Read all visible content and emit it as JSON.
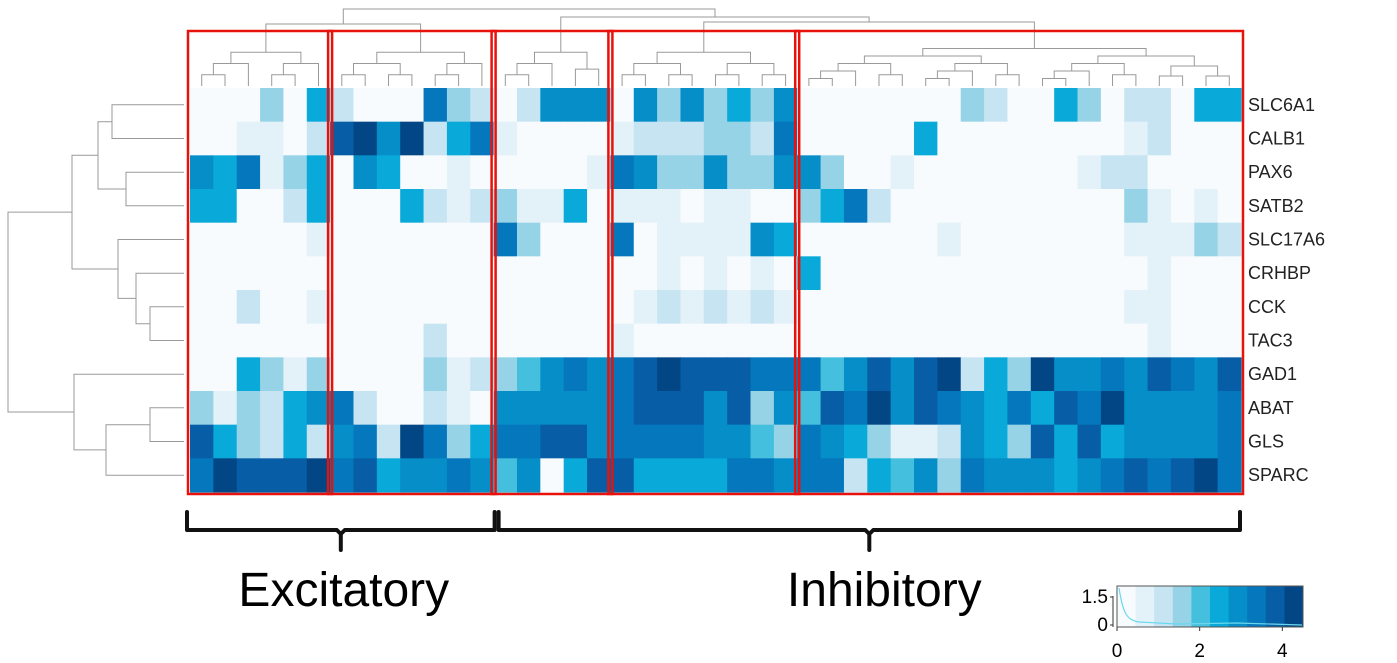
{
  "chart_data": {
    "type": "heatmap",
    "rows": [
      "SLC6A1",
      "CALB1",
      "PAX6",
      "SATB2",
      "SLC17A6",
      "CRHBP",
      "CCK",
      "TAC3",
      "GAD1",
      "ABAT",
      "GLS",
      "SPARC"
    ],
    "n_columns": 45,
    "values": [
      [
        0,
        0,
        0,
        1.5,
        0,
        2.5,
        1,
        0,
        0,
        0,
        3.5,
        1.5,
        1,
        0,
        1,
        3,
        3,
        3,
        0,
        3,
        1.5,
        3,
        1.5,
        2.5,
        1.5,
        3,
        0,
        0,
        0,
        0,
        0,
        0,
        0,
        1.5,
        1,
        0,
        0,
        2.5,
        1.5,
        0,
        1,
        1,
        0,
        2.5,
        2.5
      ],
      [
        0,
        0,
        0.5,
        0.5,
        0,
        1,
        4,
        4.5,
        3,
        4.5,
        1,
        2.5,
        3.5,
        0.5,
        0,
        0,
        0,
        0,
        0.5,
        1,
        1,
        1,
        1.5,
        1.5,
        1,
        3.5,
        0,
        0,
        0,
        0,
        0,
        2.5,
        0,
        0,
        0,
        0,
        0,
        0,
        0,
        0,
        0.5,
        1,
        0,
        0,
        0
      ],
      [
        3,
        2.5,
        3.5,
        0.5,
        1.5,
        2.5,
        0,
        3,
        2.5,
        0,
        0,
        0.5,
        0,
        0,
        0,
        0,
        0,
        0.5,
        3.5,
        3,
        1.5,
        1.5,
        3,
        1.5,
        1.5,
        3,
        3,
        1.5,
        0,
        0,
        0.5,
        0,
        0,
        0,
        0,
        0,
        0,
        0,
        0.5,
        1,
        1,
        0,
        0,
        0,
        0
      ],
      [
        2.5,
        2.5,
        0,
        0,
        1,
        2.5,
        0,
        0,
        0,
        2.5,
        1,
        0.5,
        1,
        1.5,
        0.5,
        0.5,
        2.5,
        0,
        0.5,
        0.5,
        0.5,
        0,
        0.5,
        0.5,
        0,
        0,
        1.5,
        2.5,
        3.5,
        1,
        0,
        0,
        0,
        0,
        0,
        0,
        0,
        0,
        0,
        0,
        1.5,
        0.5,
        0,
        0.5,
        0
      ],
      [
        0,
        0,
        0,
        0,
        0,
        0.5,
        0,
        0,
        0,
        0,
        0,
        0,
        0,
        3.5,
        1.5,
        0,
        0,
        0,
        3.5,
        0,
        0.5,
        0.5,
        0.5,
        0.5,
        3,
        2.5,
        0,
        0,
        0,
        0,
        0,
        0,
        0.5,
        0,
        0,
        0,
        0,
        0,
        0,
        0,
        0.5,
        0.5,
        0.5,
        1.5,
        1
      ],
      [
        0,
        0,
        0,
        0,
        0,
        0,
        0,
        0,
        0,
        0,
        0,
        0,
        0,
        0,
        0,
        0,
        0,
        0,
        0,
        0,
        0.5,
        0,
        0.5,
        0,
        0.5,
        0,
        2.5,
        0,
        0,
        0,
        0,
        0,
        0,
        0,
        0,
        0,
        0,
        0,
        0,
        0,
        0,
        0.5,
        0,
        0,
        0
      ],
      [
        0,
        0,
        1,
        0,
        0,
        0.5,
        0,
        0,
        0,
        0,
        0,
        0,
        0,
        0,
        0,
        0,
        0,
        0,
        0,
        0.5,
        1,
        0.5,
        1,
        0.5,
        1,
        0.5,
        0,
        0,
        0,
        0,
        0,
        0,
        0,
        0,
        0,
        0,
        0,
        0,
        0,
        0,
        0.5,
        0.5,
        0,
        0,
        0
      ],
      [
        0,
        0,
        0,
        0,
        0,
        0,
        0,
        0,
        0,
        0,
        1,
        0,
        0,
        0,
        0,
        0,
        0,
        0,
        0.5,
        0,
        0,
        0,
        0,
        0,
        0,
        0,
        0,
        0,
        0,
        0,
        0,
        0,
        0,
        0,
        0,
        0,
        0,
        0,
        0,
        0,
        0,
        0.5,
        0,
        0,
        0
      ],
      [
        0,
        0,
        2.5,
        1.5,
        0.5,
        1.5,
        0,
        0,
        0,
        0,
        1.5,
        0.5,
        1,
        1.5,
        2,
        3,
        3.5,
        3,
        3.5,
        4,
        4.5,
        4,
        4,
        4,
        3.5,
        3.5,
        3.5,
        2,
        3,
        4,
        3,
        4,
        4.5,
        1,
        2.5,
        1.5,
        4.5,
        3,
        3,
        3.5,
        3,
        4,
        3.5,
        3,
        4
      ],
      [
        1.5,
        0.5,
        1.5,
        1,
        2.5,
        3,
        3.5,
        1,
        0,
        0,
        1,
        0.5,
        0,
        3,
        3,
        3,
        3,
        3,
        3.5,
        4,
        4,
        4,
        3,
        4,
        1.5,
        3,
        2,
        4,
        3.5,
        4.5,
        3,
        4,
        3.5,
        3,
        2.5,
        3.5,
        2.5,
        4,
        3.5,
        4.5,
        3,
        3,
        3,
        3,
        3.5
      ],
      [
        4,
        2.5,
        1.5,
        1,
        2.5,
        1,
        3,
        3.5,
        1,
        4.5,
        3.5,
        1.5,
        2.5,
        3.5,
        3.5,
        4,
        4,
        3,
        3.5,
        3.5,
        3.5,
        3.5,
        3,
        3,
        2,
        1.5,
        3.5,
        3,
        2.5,
        1.5,
        0.5,
        0.5,
        1,
        3,
        2.5,
        1.5,
        4,
        2.5,
        4,
        2.5,
        3,
        3,
        3,
        3,
        3.5
      ],
      [
        3.5,
        4.5,
        4,
        4,
        4,
        4.5,
        3.5,
        4,
        2.5,
        3,
        3,
        3.5,
        3,
        2,
        3,
        0,
        2.5,
        4,
        4,
        2.5,
        2.5,
        2.5,
        2.5,
        3.5,
        3.5,
        3,
        3.5,
        3.5,
        1,
        2.5,
        2,
        3,
        1.5,
        3.5,
        3,
        3,
        3,
        2.5,
        3,
        3.5,
        4,
        3.5,
        4,
        4.5,
        3.5
      ]
    ],
    "row_order": "hierarchical clustering (dendrogram at left)",
    "column_order": "hierarchical clustering (dendrogram at top)",
    "column_clusters": [
      [
        0,
        5
      ],
      [
        6,
        12
      ],
      [
        13,
        17
      ],
      [
        18,
        25
      ],
      [
        26,
        44
      ]
    ],
    "groups": [
      {
        "label": "Excitatory",
        "columns": [
          0,
          12
        ]
      },
      {
        "label": "Inhibitory",
        "columns": [
          13,
          44
        ]
      }
    ],
    "color_scale": {
      "min": 0,
      "max": 4.5,
      "colors": [
        "#f7fbfd",
        "#e3f1f8",
        "#c7e4f2",
        "#97d3e6",
        "#44c0de",
        "#09a9d9",
        "#068ec8",
        "#0577bd",
        "#075ea6",
        "#034685"
      ],
      "ticks": [
        "0",
        "2",
        "4"
      ],
      "histogram_ticks": [
        "1.5",
        "0"
      ]
    },
    "cluster_box_color": "#e8120c"
  }
}
